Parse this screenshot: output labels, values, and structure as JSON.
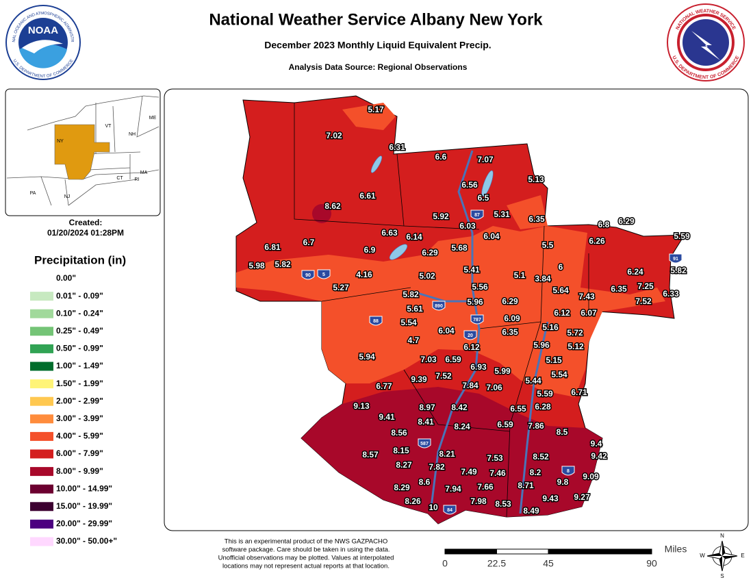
{
  "header": {
    "title": "National Weather Service Albany New York",
    "subtitle": "December 2023 Monthly Liquid Equivalent Precip.",
    "source": "Analysis Data Source: Regional Observations"
  },
  "logos": {
    "noaa": {
      "name": "NOAA",
      "ring_top": "NATIONAL OCEANIC AND ATMOSPHERIC ADMINISTRATION",
      "ring_bottom": "U.S. DEPARTMENT OF COMMERCE"
    },
    "nws": {
      "ring_top": "NATIONAL WEATHER SERVICE",
      "ring_bottom": "U.S. DEPARTMENT OF COMMERCE"
    }
  },
  "inset": {
    "states": [
      "ME",
      "VT",
      "NH",
      "NY",
      "MA",
      "RI",
      "CT",
      "PA",
      "NJ"
    ]
  },
  "created": {
    "label": "Created:",
    "date": "01/20/2024 01:28PM"
  },
  "legend": {
    "title": "Precipitation (in)",
    "items": [
      {
        "label": "0.00\"",
        "color": "#ffffff"
      },
      {
        "label": "0.01\" - 0.09\"",
        "color": "#c7e9c0"
      },
      {
        "label": "0.10\" - 0.24\"",
        "color": "#a1d99b"
      },
      {
        "label": "0.25\" - 0.49\"",
        "color": "#74c476"
      },
      {
        "label": "0.50\" - 0.99\"",
        "color": "#31a354"
      },
      {
        "label": "1.00\" - 1.49\"",
        "color": "#006d2c"
      },
      {
        "label": "1.50\" - 1.99\"",
        "color": "#fff478"
      },
      {
        "label": "2.00\" - 2.99\"",
        "color": "#ffc850"
      },
      {
        "label": "3.00\" - 3.99\"",
        "color": "#ff8c3c"
      },
      {
        "label": "4.00\" - 5.99\"",
        "color": "#f4502a"
      },
      {
        "label": "6.00\" - 7.99\"",
        "color": "#d41e1e"
      },
      {
        "label": "8.00\" - 9.99\"",
        "color": "#a8082a"
      },
      {
        "label": "10.00\" - 14.99\"",
        "color": "#6c0030"
      },
      {
        "label": "15.00\" - 19.99\"",
        "color": "#3c0030"
      },
      {
        "label": "20.00\" - 29.99\"",
        "color": "#4c0080"
      },
      {
        "label": "30.00\" - 50.00+\"",
        "color": "#ffd8ff"
      }
    ]
  },
  "map": {
    "shields": [
      "87",
      "90",
      "5",
      "890",
      "88",
      "787",
      "20",
      "587",
      "91",
      "84",
      "8"
    ],
    "observations": [
      5.17,
      7.02,
      6.31,
      6.6,
      7.07,
      5.13,
      6.56,
      6.5,
      6.61,
      8.62,
      5.92,
      5.31,
      6.35,
      6.8,
      6.29,
      6.03,
      6.63,
      6.14,
      6.04,
      6.26,
      5.59,
      6.81,
      6.7,
      6.9,
      6.29,
      5.68,
      5.5,
      5.98,
      5.82,
      4.16,
      5.02,
      5.41,
      6,
      6.24,
      5.82,
      5.1,
      3.84,
      5.27,
      5.56,
      6.35,
      7.25,
      5.64,
      7.43,
      6.33,
      7.52,
      5.82,
      5.96,
      6.29,
      5.61,
      6.12,
      6.07,
      5.54,
      6.09,
      6.04,
      6.35,
      5.16,
      5.72,
      4.7,
      6.12,
      5.96,
      5.12,
      5.94,
      7.03,
      6.59,
      5.15,
      6.93,
      5.99,
      5.54,
      9.39,
      7.52,
      5.44,
      6.77,
      7.84,
      7.06,
      5.59,
      6.71,
      9.13,
      8.97,
      8.42,
      6.55,
      6.28,
      9.41,
      8.41,
      8.24,
      6.59,
      7.86,
      8.5,
      8.56,
      9.4,
      8.15,
      8.21,
      9.42,
      8.57,
      7.53,
      8.52,
      8.27,
      7.82,
      7.49,
      7.46,
      8.2,
      9.09,
      8.6,
      9.8,
      8.29,
      7.94,
      7.66,
      8.71,
      9.43,
      9.27,
      8.26,
      7.98,
      8.53,
      10,
      8.49
    ]
  },
  "disclaimer": [
    "This is an experimental product of the NWS GAZPACHO",
    "software package. Care should be taken in using the data.",
    "Unofficial observations may be plotted. Values at interpolated",
    "locations may not represent actual reports at that location."
  ],
  "scale_bar": {
    "unit": "Miles",
    "ticks": [
      0,
      22.5,
      45,
      90
    ]
  },
  "compass": [
    "N",
    "E",
    "S",
    "W"
  ]
}
